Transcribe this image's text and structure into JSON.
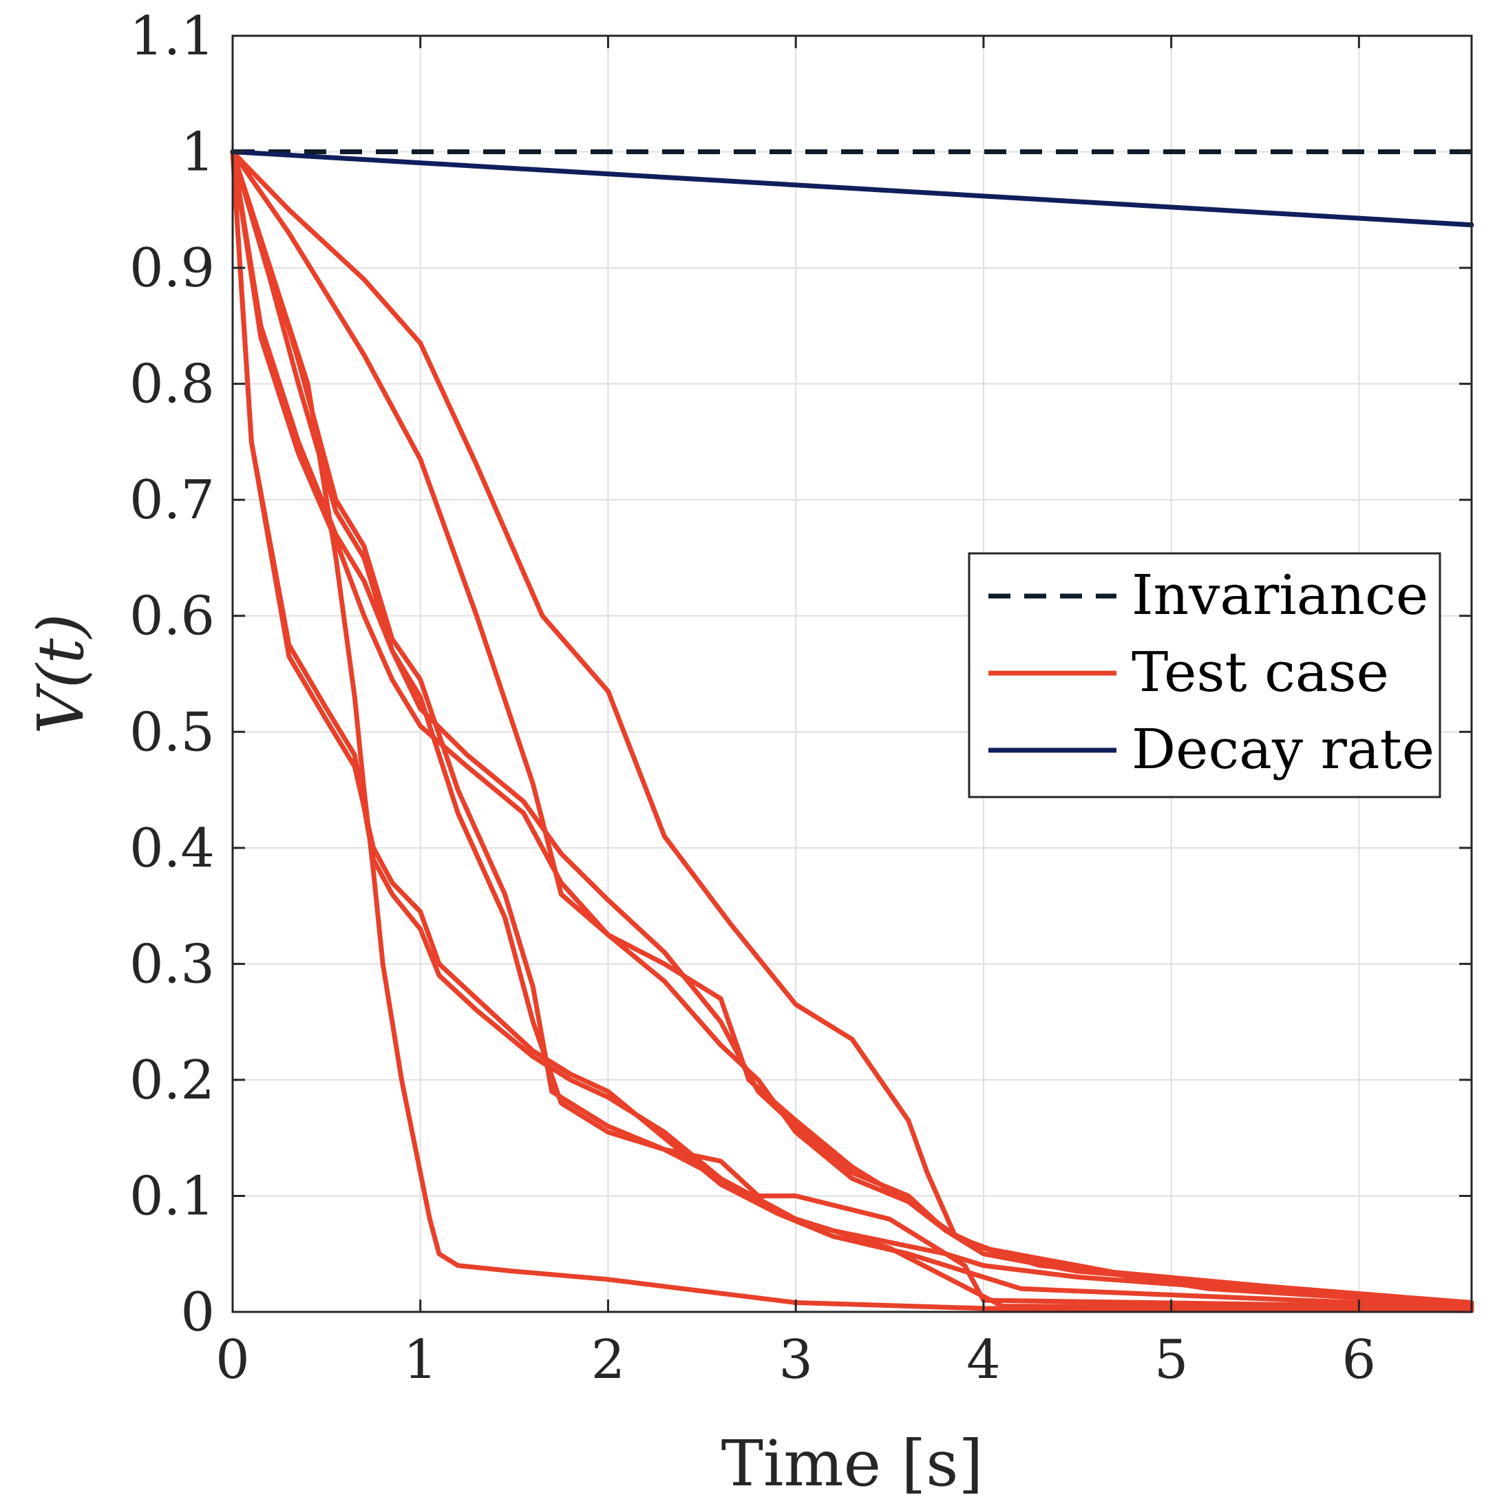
{
  "chart_data": {
    "type": "line",
    "xlabel": "Time [s]",
    "ylabel": "V(t)",
    "xlim": [
      0,
      6.6
    ],
    "ylim": [
      0,
      1.1
    ],
    "xticks": [
      "0",
      "1",
      "2",
      "3",
      "4",
      "5",
      "6"
    ],
    "yticks": [
      "0",
      "0.1",
      "0.2",
      "0.3",
      "0.4",
      "0.5",
      "0.6",
      "0.7",
      "0.8",
      "0.9",
      "1",
      "1.1"
    ],
    "grid": true,
    "legend_position": "right",
    "colors": {
      "invariance": "#0d1b2a",
      "test_case": "#e8402a",
      "decay_rate": "#0f1f5c"
    },
    "series": [
      {
        "name": "Invariance",
        "style": "dashed",
        "color": "#0d1b2a",
        "x": [
          0,
          6.6
        ],
        "y": [
          1.0,
          1.0
        ]
      },
      {
        "name": "Test case",
        "style": "solid",
        "color": "#e8402a",
        "x": [
          0,
          0.3,
          0.7,
          1.0,
          1.3,
          1.65,
          2.0,
          2.3,
          2.65,
          3.0,
          3.3,
          3.6,
          3.7,
          3.85,
          4.1,
          4.6,
          5.2,
          6.6
        ],
        "y": [
          1.0,
          0.95,
          0.89,
          0.835,
          0.73,
          0.6,
          0.535,
          0.41,
          0.335,
          0.265,
          0.235,
          0.165,
          0.12,
          0.065,
          0.05,
          0.035,
          0.02,
          0.006
        ]
      },
      {
        "name": "Test case",
        "style": "solid",
        "color": "#e8402a",
        "x": [
          0,
          0.3,
          0.7,
          1.0,
          1.3,
          1.6,
          1.75,
          2.0,
          2.3,
          2.6,
          2.75,
          3.0,
          3.3,
          3.6,
          3.8,
          4.0,
          4.5,
          5.0,
          6.6
        ],
        "y": [
          1.0,
          0.93,
          0.825,
          0.735,
          0.6,
          0.455,
          0.36,
          0.325,
          0.3,
          0.27,
          0.2,
          0.165,
          0.125,
          0.095,
          0.07,
          0.055,
          0.04,
          0.025,
          0.008
        ]
      },
      {
        "name": "Test case",
        "style": "solid",
        "color": "#e8402a",
        "x": [
          0,
          0.15,
          0.35,
          0.55,
          0.7,
          0.85,
          1.0,
          1.25,
          1.55,
          1.75,
          2.0,
          2.3,
          2.6,
          2.8,
          3.0,
          3.3,
          3.6,
          3.8,
          4.0,
          4.5,
          6.6
        ],
        "y": [
          1.0,
          0.85,
          0.75,
          0.67,
          0.63,
          0.57,
          0.52,
          0.48,
          0.44,
          0.395,
          0.355,
          0.31,
          0.25,
          0.19,
          0.16,
          0.12,
          0.1,
          0.07,
          0.05,
          0.035,
          0.008
        ]
      },
      {
        "name": "Test case",
        "style": "solid",
        "color": "#e8402a",
        "x": [
          0,
          0.15,
          0.35,
          0.55,
          0.7,
          0.85,
          1.0,
          1.25,
          1.55,
          1.75,
          2.0,
          2.3,
          2.6,
          2.8,
          3.0,
          3.3,
          3.6,
          3.9,
          4.3,
          6.6
        ],
        "y": [
          1.0,
          0.84,
          0.74,
          0.665,
          0.6,
          0.545,
          0.505,
          0.47,
          0.43,
          0.37,
          0.325,
          0.285,
          0.23,
          0.2,
          0.155,
          0.115,
          0.095,
          0.06,
          0.04,
          0.006
        ]
      },
      {
        "name": "Test case",
        "style": "solid",
        "color": "#e8402a",
        "x": [
          0,
          0.2,
          0.35,
          0.55,
          0.7,
          0.85,
          1.0,
          1.2,
          1.45,
          1.6,
          1.7,
          2.0,
          2.3,
          2.6,
          2.7,
          2.8,
          3.0,
          3.5,
          3.9,
          4.0,
          6.6
        ],
        "y": [
          1.0,
          0.9,
          0.82,
          0.7,
          0.66,
          0.58,
          0.545,
          0.45,
          0.36,
          0.28,
          0.19,
          0.16,
          0.14,
          0.13,
          0.115,
          0.1,
          0.1,
          0.08,
          0.04,
          0.01,
          0.004
        ]
      },
      {
        "name": "Test case",
        "style": "solid",
        "color": "#e8402a",
        "x": [
          0,
          0.2,
          0.35,
          0.55,
          0.7,
          0.85,
          1.0,
          1.2,
          1.45,
          1.6,
          1.75,
          2.0,
          2.3,
          2.6,
          3.0,
          3.5,
          3.8,
          4.1,
          6.6
        ],
        "y": [
          1.0,
          0.89,
          0.8,
          0.69,
          0.65,
          0.57,
          0.53,
          0.43,
          0.34,
          0.25,
          0.18,
          0.155,
          0.14,
          0.115,
          0.08,
          0.055,
          0.03,
          0.005,
          0.003
        ]
      },
      {
        "name": "Test case",
        "style": "solid",
        "color": "#e8402a",
        "x": [
          0,
          0.1,
          0.3,
          0.5,
          0.65,
          0.75,
          0.85,
          1.0,
          1.1,
          1.3,
          1.6,
          1.8,
          2.0,
          2.3,
          2.6,
          2.9,
          3.2,
          3.5,
          3.8,
          4.0,
          4.5,
          6.6
        ],
        "y": [
          1.0,
          0.75,
          0.575,
          0.52,
          0.48,
          0.39,
          0.36,
          0.33,
          0.29,
          0.26,
          0.22,
          0.2,
          0.185,
          0.155,
          0.115,
          0.085,
          0.07,
          0.06,
          0.05,
          0.04,
          0.03,
          0.005
        ]
      },
      {
        "name": "Test case",
        "style": "solid",
        "color": "#e8402a",
        "x": [
          0,
          0.1,
          0.3,
          0.5,
          0.65,
          0.75,
          0.85,
          1.0,
          1.1,
          1.3,
          1.6,
          1.8,
          2.0,
          2.3,
          2.6,
          2.9,
          3.2,
          3.6,
          3.9,
          4.2,
          6.6
        ],
        "y": [
          1.0,
          0.75,
          0.565,
          0.51,
          0.47,
          0.4,
          0.37,
          0.345,
          0.3,
          0.27,
          0.225,
          0.205,
          0.19,
          0.15,
          0.11,
          0.085,
          0.065,
          0.05,
          0.035,
          0.02,
          0.004
        ]
      },
      {
        "name": "Test case",
        "style": "solid",
        "color": "#e8402a",
        "x": [
          0,
          0.2,
          0.4,
          0.55,
          0.65,
          0.7,
          0.75,
          0.8,
          0.9,
          1.0,
          1.05,
          1.1,
          1.2,
          1.5,
          2.0,
          2.5,
          3.0,
          4.0,
          6.6
        ],
        "y": [
          1.0,
          0.9,
          0.8,
          0.65,
          0.53,
          0.45,
          0.38,
          0.3,
          0.2,
          0.12,
          0.08,
          0.05,
          0.04,
          0.035,
          0.028,
          0.018,
          0.008,
          0.003,
          0.001
        ]
      },
      {
        "name": "Decay rate",
        "style": "solid",
        "color": "#0f1f5c",
        "x": [
          0,
          6.6
        ],
        "y": [
          1.0,
          0.937
        ]
      }
    ],
    "legend": [
      {
        "label": "Invariance",
        "style": "dashed",
        "color": "#0d1b2a"
      },
      {
        "label": "Test case",
        "style": "solid",
        "color": "#e8402a"
      },
      {
        "label": "Decay rate",
        "style": "solid",
        "color": "#0f1f5c"
      }
    ]
  }
}
